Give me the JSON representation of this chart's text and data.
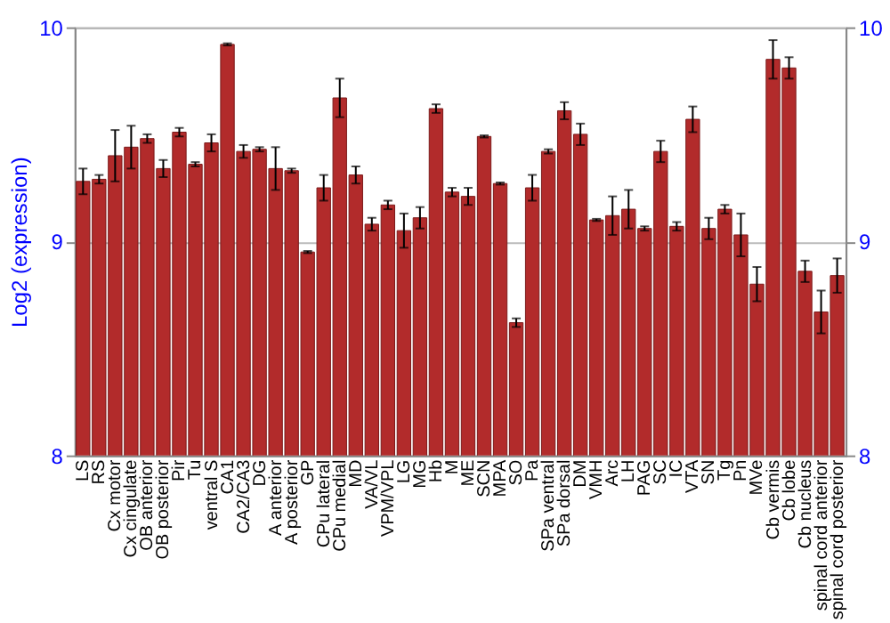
{
  "chart_data": {
    "type": "bar",
    "ylabel": "Log2 (expression)",
    "categories": [
      "LS",
      "RS",
      "Cx motor",
      "Cx cingulate",
      "OB anterior",
      "OB posterior",
      "Pir",
      "Tu",
      "ventral S",
      "CA1",
      "CA2/CA3",
      "DG",
      "A anterior",
      "A posterior",
      "GP",
      "CPu lateral",
      "CPu medial",
      "MD",
      "VA/VL",
      "VPM/VPL",
      "LG",
      "MG",
      "Hb",
      "M",
      "ME",
      "SCN",
      "MPA",
      "SO",
      "Pa",
      "SPa ventral",
      "SPa dorsal",
      "DM",
      "VMH",
      "Arc",
      "LH",
      "PAG",
      "SC",
      "IC",
      "VTA",
      "SN",
      "Tg",
      "Pn",
      "MVe",
      "Cb vermis",
      "Cb lobe",
      "Cb nucleus",
      "spinal cord anterior",
      "spinal cord posterior"
    ],
    "series": [
      {
        "color": "#b22b2b",
        "values": [
          9.28,
          9.29,
          9.4,
          9.44,
          9.48,
          9.34,
          9.51,
          9.36,
          9.46,
          9.92,
          9.42,
          9.43,
          9.34,
          9.33,
          8.95,
          9.25,
          9.67,
          9.31,
          9.08,
          9.17,
          9.05,
          9.11,
          9.62,
          9.23,
          9.21,
          9.49,
          9.27,
          8.62,
          9.25,
          9.42,
          9.61,
          9.5,
          9.1,
          9.12,
          9.15,
          9.06,
          9.42,
          9.07,
          9.57,
          9.06,
          9.15,
          9.03,
          8.8,
          9.85,
          9.81,
          8.86,
          8.67,
          8.84
        ],
        "errors": [
          0.06,
          0.02,
          0.12,
          0.1,
          0.02,
          0.04,
          0.02,
          0.01,
          0.04,
          0.005,
          0.03,
          0.01,
          0.1,
          0.01,
          0.005,
          0.06,
          0.09,
          0.04,
          0.03,
          0.02,
          0.08,
          0.05,
          0.02,
          0.02,
          0.04,
          0.005,
          0.005,
          0.02,
          0.06,
          0.01,
          0.04,
          0.05,
          0.005,
          0.09,
          0.09,
          0.01,
          0.05,
          0.02,
          0.06,
          0.05,
          0.02,
          0.1,
          0.08,
          0.09,
          0.05,
          0.05,
          0.1,
          0.08
        ]
      }
    ],
    "ylim": [
      8,
      10
    ],
    "yticks": [
      8,
      9,
      10
    ],
    "y2lim": [
      8,
      10
    ],
    "y2ticks": [
      8,
      9,
      10
    ],
    "grid": "y"
  }
}
